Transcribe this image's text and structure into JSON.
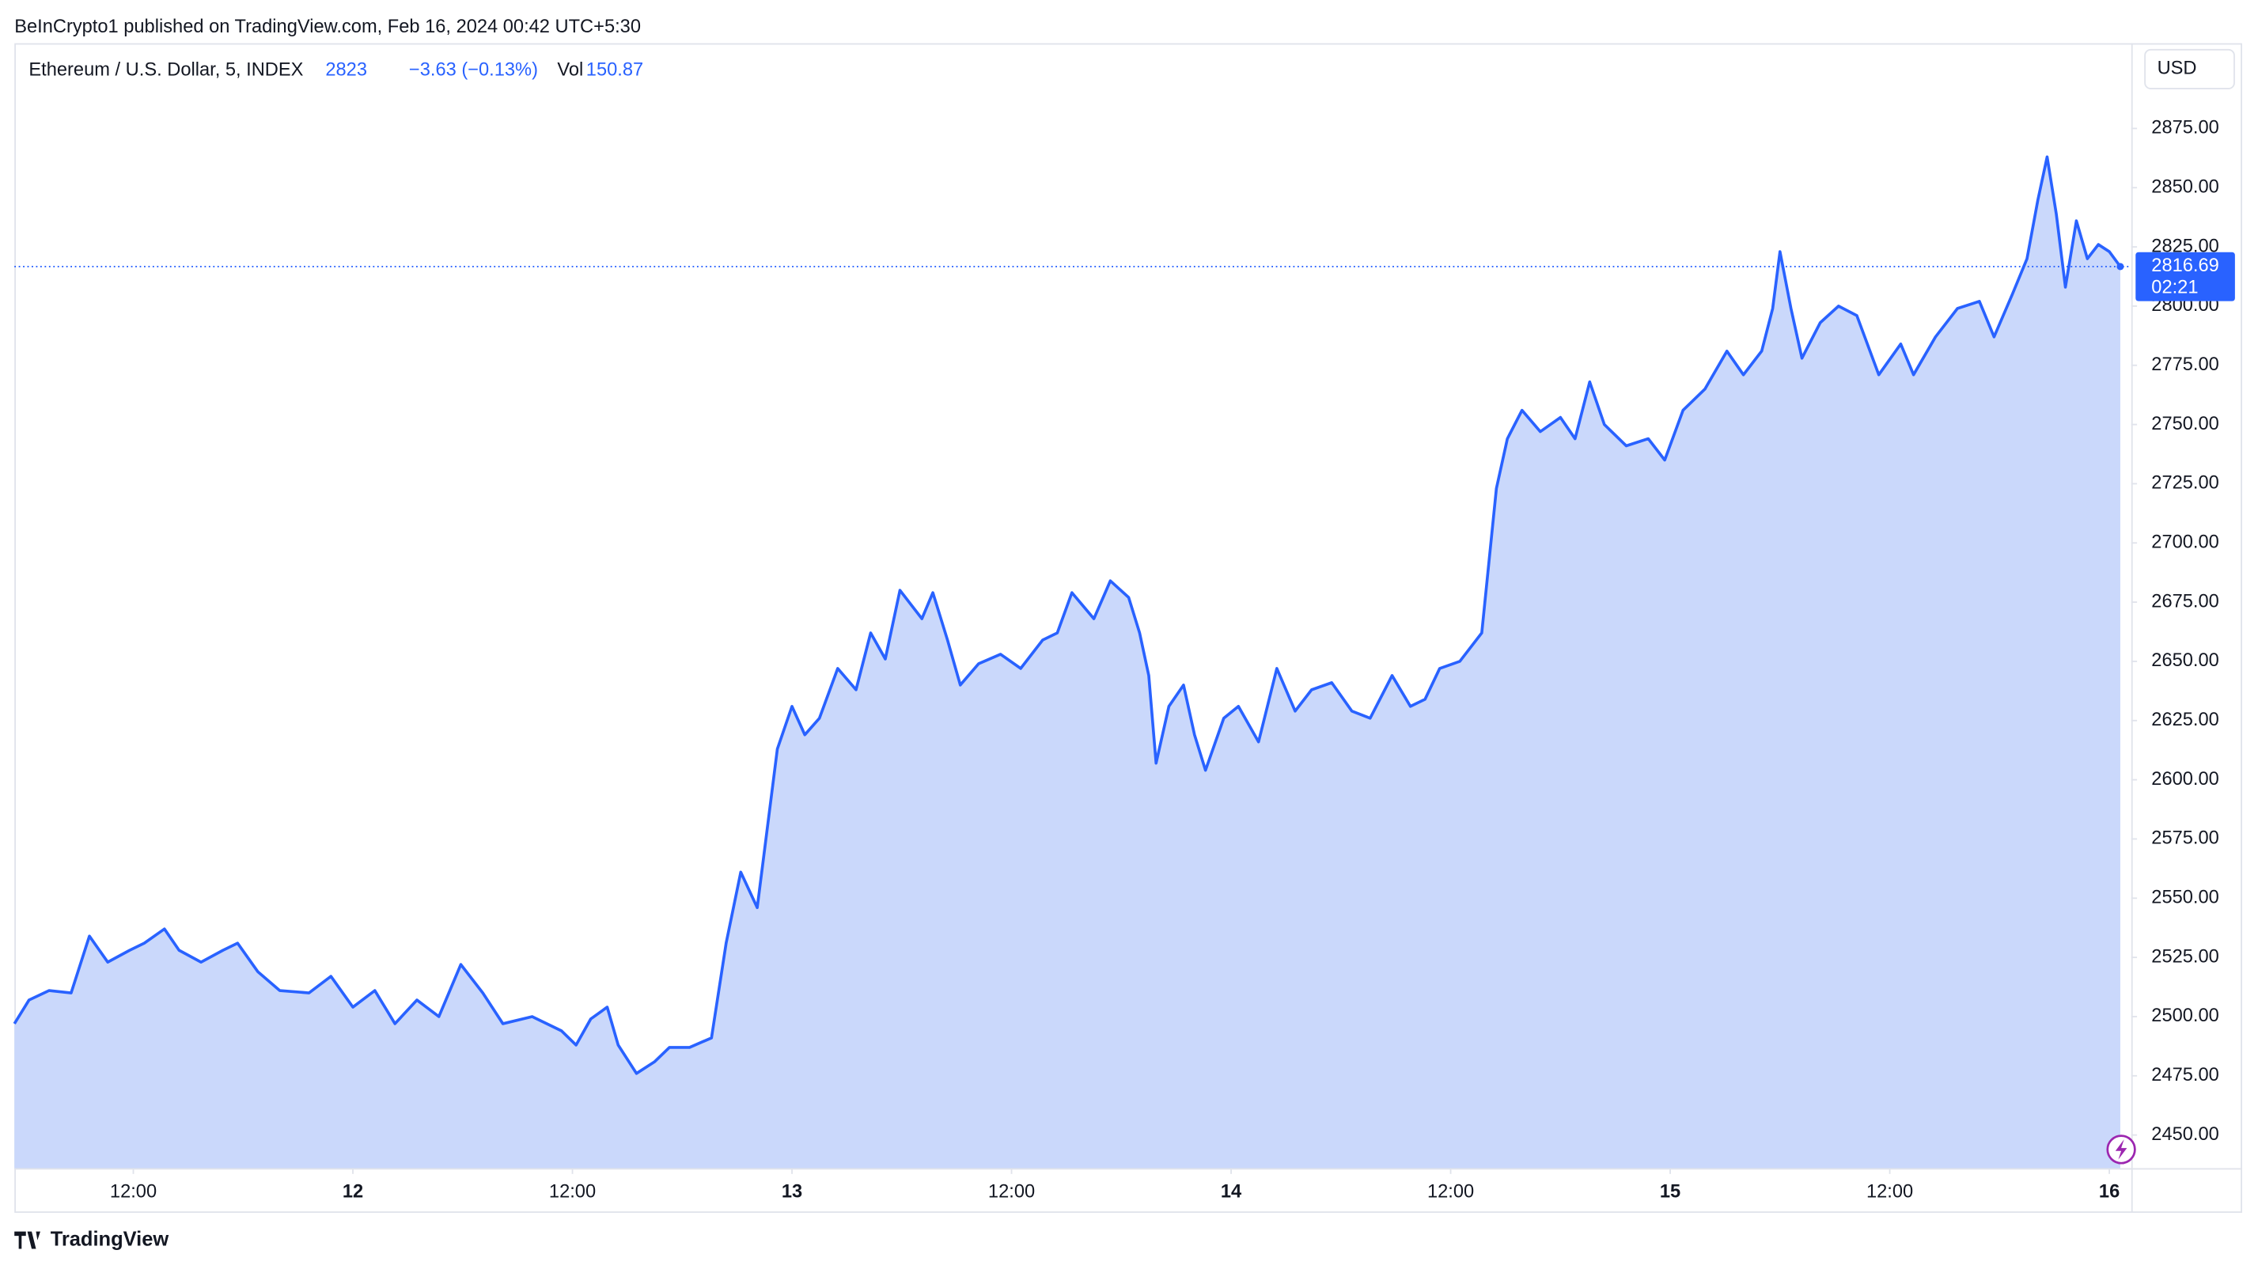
{
  "header": "BeInCrypto1 published on TradingView.com, Feb 16, 2024 00:42 UTC+5:30",
  "footer": "TradingView",
  "chart_data": {
    "type": "area",
    "symbol": "Ethereum / U.S. Dollar, 5, INDEX",
    "change": "−3.63 (−0.13%)",
    "volume_label": "Vol",
    "volume": 150.87,
    "currency": "USD",
    "countdown": "02:21",
    "color": "#2962ff",
    "fill": "#cad8fb",
    "grid": false,
    "x": [
      5.5,
      6.3,
      7.4,
      8.6,
      9.6,
      10.6,
      11.8,
      12.6,
      13.7,
      14.5,
      15.7,
      16.9,
      17.7,
      18.8,
      20.0,
      21.6,
      22.8,
      24.0,
      25.2,
      26.3,
      27.5,
      28.7,
      29.9,
      31.1,
      32.2,
      33.8,
      35.4,
      36.2,
      37.0,
      37.9,
      38.5,
      39.5,
      40.5,
      41.3,
      42.4,
      43.6,
      44.4,
      45.2,
      46.1,
      47.2,
      48.0,
      48.7,
      49.5,
      50.5,
      51.5,
      52.3,
      53.1,
      53.9,
      55.1,
      55.7,
      56.5,
      57.2,
      58.2,
      59.4,
      60.5,
      61.7,
      62.5,
      63.3,
      64.5,
      65.4,
      66.4,
      67.0,
      67.5,
      67.9,
      68.6,
      69.4,
      70.0,
      70.6,
      71.6,
      72.4,
      73.5,
      74.5,
      75.5,
      76.4,
      77.5,
      78.6,
      79.6,
      80.8,
      81.8,
      82.6,
      83.4,
      84.5,
      85.7,
      86.5,
      87.1,
      87.9,
      88.9,
      90.0,
      90.8,
      91.6,
      92.4,
      93.6,
      94.8,
      95.7,
      96.7,
      97.9,
      99.1,
      100.0,
      101.0,
      101.6,
      102.0,
      102.6,
      103.2,
      104.2,
      105.2,
      106.2,
      107.4,
      108.6,
      109.3,
      110.5,
      111.7,
      112.9,
      113.7,
      114.7,
      115.5,
      116.1,
      116.6,
      117.1,
      117.6,
      118.2,
      118.8,
      119.4,
      120.0,
      120.6
    ],
    "values": [
      2497,
      2507,
      2511,
      2510,
      2534,
      2523,
      2528,
      2531,
      2537,
      2528,
      2523,
      2528,
      2531,
      2519,
      2511,
      2510,
      2517,
      2504,
      2511,
      2497,
      2507,
      2500,
      2522,
      2510,
      2497,
      2500,
      2494,
      2488,
      2499,
      2504,
      2488,
      2476,
      2481,
      2487,
      2487,
      2491,
      2531,
      2561,
      2546,
      2613,
      2631,
      2619,
      2626,
      2647,
      2638,
      2662,
      2651,
      2680,
      2668,
      2679,
      2659,
      2640,
      2649,
      2653,
      2647,
      2659,
      2662,
      2679,
      2668,
      2684,
      2677,
      2662,
      2644,
      2607,
      2631,
      2640,
      2619,
      2604,
      2626,
      2631,
      2616,
      2647,
      2629,
      2638,
      2641,
      2629,
      2626,
      2644,
      2631,
      2634,
      2647,
      2650,
      2662,
      2723,
      2744,
      2756,
      2747,
      2753,
      2744,
      2768,
      2750,
      2741,
      2744,
      2735,
      2756,
      2765,
      2781,
      2771,
      2781,
      2799,
      2823,
      2799,
      2778,
      2793,
      2800,
      2796,
      2771,
      2784,
      2771,
      2787,
      2799,
      2802,
      2787,
      2805,
      2820,
      2845,
      2863,
      2839,
      2808,
      2836,
      2820,
      2826,
      2823,
      2816.69
    ],
    "xlim": [
      5.5,
      121.2
    ],
    "ylim": [
      2436,
      2911
    ],
    "xticks": [
      {
        "value": 12,
        "label": "12:00"
      },
      {
        "value": 24,
        "label": "12"
      },
      {
        "value": 36,
        "label": "12:00"
      },
      {
        "value": 48,
        "label": "13"
      },
      {
        "value": 60,
        "label": "12:00"
      },
      {
        "value": 72,
        "label": "14"
      },
      {
        "value": 84,
        "label": "12:00"
      },
      {
        "value": 96,
        "label": "15"
      },
      {
        "value": 108,
        "label": "12:00"
      },
      {
        "value": 120,
        "label": "16"
      }
    ],
    "yticks": [
      {
        "value": 2450,
        "label": "2450.00"
      },
      {
        "value": 2475,
        "label": "2475.00"
      },
      {
        "value": 2500,
        "label": "2500.00"
      },
      {
        "value": 2525,
        "label": "2525.00"
      },
      {
        "value": 2550,
        "label": "2550.00"
      },
      {
        "value": 2575,
        "label": "2575.00"
      },
      {
        "value": 2600,
        "label": "2600.00"
      },
      {
        "value": 2625,
        "label": "2625.00"
      },
      {
        "value": 2650,
        "label": "2650.00"
      },
      {
        "value": 2675,
        "label": "2675.00"
      },
      {
        "value": 2700,
        "label": "2700.00"
      },
      {
        "value": 2725,
        "label": "2725.00"
      },
      {
        "value": 2750,
        "label": "2750.00"
      },
      {
        "value": 2775,
        "label": "2775.00"
      },
      {
        "value": 2800,
        "label": "2800.00"
      },
      {
        "value": 2825,
        "label": "2825.00"
      },
      {
        "value": 2850,
        "label": "2850.00"
      },
      {
        "value": 2875,
        "label": "2875.00"
      }
    ]
  }
}
